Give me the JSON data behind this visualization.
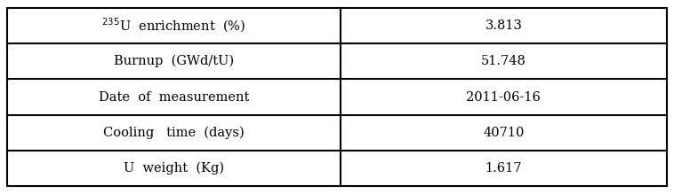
{
  "rows": [
    [
      "$^{235}$U  enrichment  (%)",
      "3.813"
    ],
    [
      "Burnup  (GWd/tU)",
      "51.748"
    ],
    [
      "Date  of  measurement",
      "2011-06-16"
    ],
    [
      "Cooling   time  (days)",
      "40710"
    ],
    [
      "U  weight  (Kg)",
      "1.617"
    ]
  ],
  "col_split": 0.505,
  "bg_color": "#ffffff",
  "border_color": "#000000",
  "text_color": "#000000",
  "font_size": 10.5,
  "font_family": "serif"
}
